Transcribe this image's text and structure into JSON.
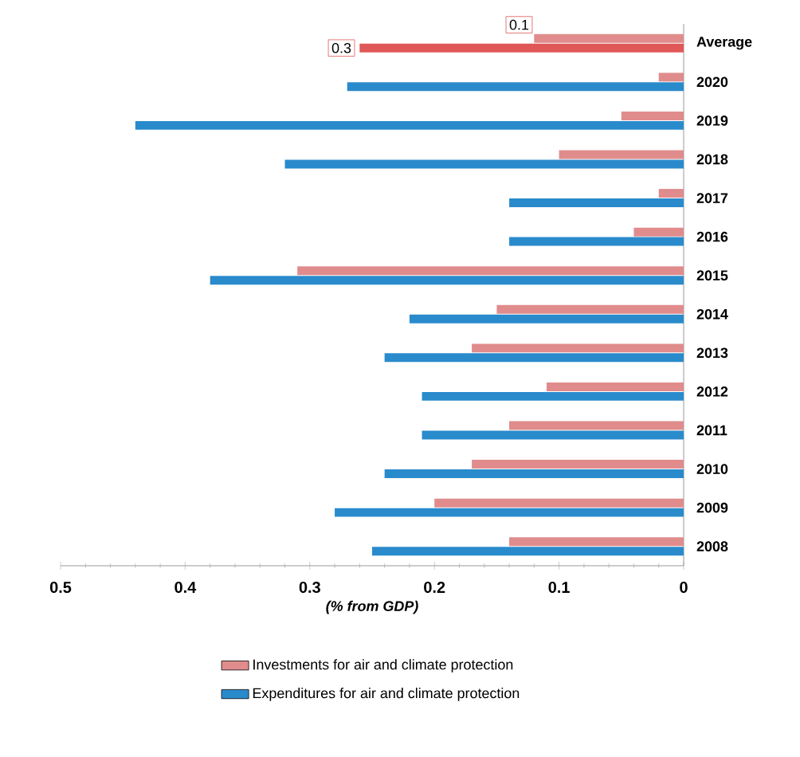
{
  "chart_data": {
    "type": "bar",
    "orientation": "horizontal",
    "xlabel": "(% from GDP)",
    "categories": [
      "Average",
      "2020",
      "2019",
      "2018",
      "2017",
      "2016",
      "2015",
      "2014",
      "2013",
      "2012",
      "2011",
      "2010",
      "2009",
      "2008"
    ],
    "series": [
      {
        "name": "Investments for air and climate protection",
        "color": "#e08c8c",
        "values": [
          0.12,
          0.02,
          0.05,
          0.1,
          0.02,
          0.04,
          0.31,
          0.15,
          0.17,
          0.11,
          0.14,
          0.17,
          0.2,
          0.14
        ],
        "value_labels": [
          "0.1",
          null,
          null,
          null,
          null,
          null,
          null,
          null,
          null,
          null,
          null,
          null,
          null,
          null
        ]
      },
      {
        "name": "Expenditures for air and climate protection",
        "color": "#2a8bcc",
        "colors": [
          "#e05757",
          "#2a8bcc",
          "#2a8bcc",
          "#2a8bcc",
          "#2a8bcc",
          "#2a8bcc",
          "#2a8bcc",
          "#2a8bcc",
          "#2a8bcc",
          "#2a8bcc",
          "#2a8bcc",
          "#2a8bcc",
          "#2a8bcc",
          "#2a8bcc"
        ],
        "values": [
          0.26,
          0.27,
          0.44,
          0.32,
          0.14,
          0.14,
          0.38,
          0.22,
          0.24,
          0.21,
          0.21,
          0.24,
          0.28,
          0.25
        ],
        "value_labels": [
          "0.3",
          null,
          null,
          null,
          null,
          null,
          null,
          null,
          null,
          null,
          null,
          null,
          null,
          null
        ]
      }
    ],
    "xlim": [
      0.5,
      0
    ],
    "xticks": [
      0.5,
      {
        "value": 0.48,
        "label": null
      },
      {
        "value": 0.46,
        "label": null
      },
      {
        "value": 0.44,
        "label": null
      },
      {
        "value": 0.42,
        "label": null
      },
      0.4,
      {
        "value": 0.38,
        "label": null
      },
      {
        "value": 0.36,
        "label": null
      },
      {
        "value": 0.34,
        "label": null
      },
      {
        "value": 0.32,
        "label": null
      },
      0.3,
      {
        "value": 0.28,
        "label": null
      },
      {
        "value": 0.26,
        "label": null
      },
      {
        "value": 0.24,
        "label": null
      },
      {
        "value": 0.22,
        "label": null
      },
      0.2,
      {
        "value": 0.18,
        "label": null
      },
      {
        "value": 0.16,
        "label": null
      },
      {
        "value": 0.14,
        "label": null
      },
      {
        "value": 0.12,
        "label": null
      },
      0.1,
      {
        "value": 0.08,
        "label": null
      },
      {
        "value": 0.06,
        "label": null
      },
      {
        "value": 0.04,
        "label": null
      },
      {
        "value": 0.02,
        "label": null
      },
      0
    ],
    "grid": false,
    "legend": "bottom"
  }
}
